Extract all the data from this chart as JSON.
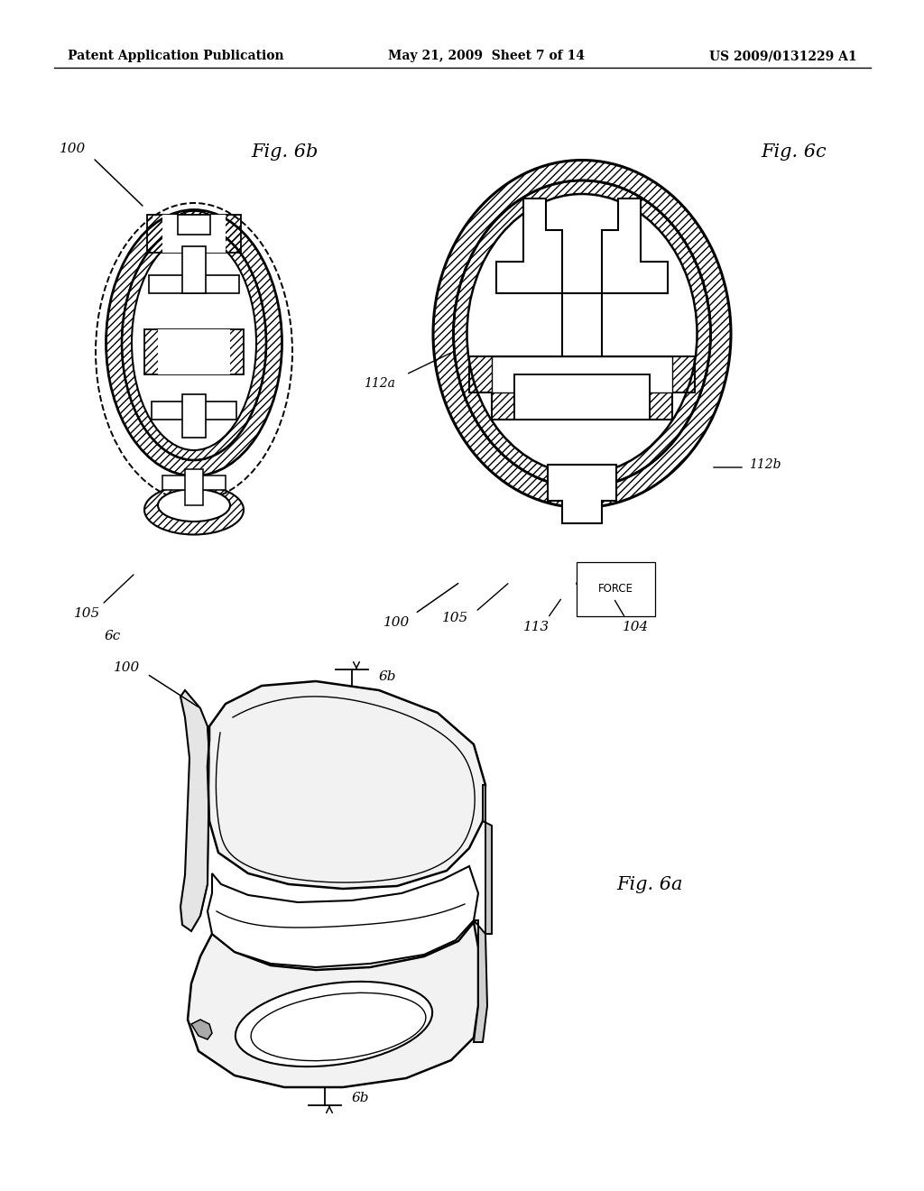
{
  "background_color": "#ffffff",
  "header_left": "Patent Application Publication",
  "header_center": "May 21, 2009  Sheet 7 of 14",
  "header_right": "US 2009/0131229 A1",
  "line_color": "#000000",
  "text_color": "#000000",
  "fig_6b_title": "Fig. 6b",
  "fig_6c_title": "Fig. 6c",
  "fig_6a_title": "Fig. 6a",
  "label_100_6b": "100",
  "label_105_6b": "105",
  "label_6c_6b": "6c",
  "label_100_6c": "100",
  "label_105_6c": "105",
  "label_112a": "112a",
  "label_112b": "112b",
  "label_113": "113",
  "label_104": "104",
  "label_force": "FORCE",
  "label_100_6a": "100",
  "label_6b_top": "6b",
  "label_6b_bot": "6b"
}
